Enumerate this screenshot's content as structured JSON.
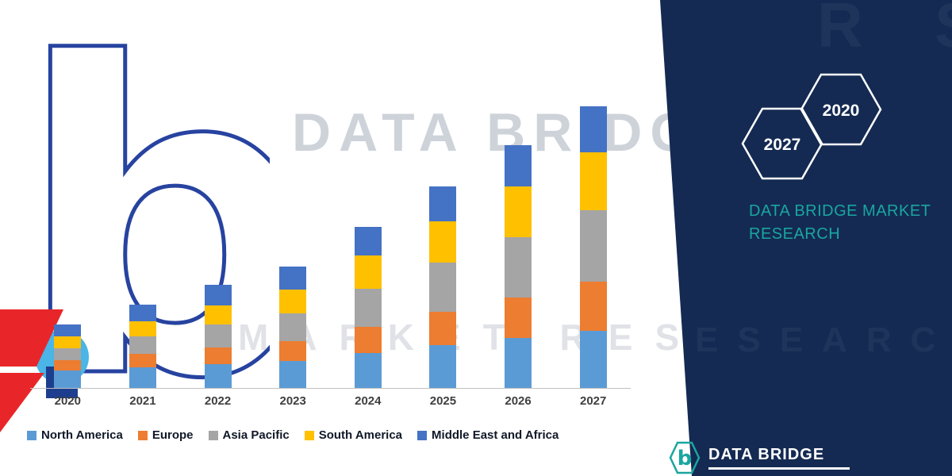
{
  "brand_colors": {
    "panel_navy": "#142a52",
    "teal": "#1AA6A0",
    "logo_blue": "#2743A0",
    "logo_red": "#E8262A",
    "logo_lightblue": "#4AB5E6"
  },
  "watermark": {
    "line1": "DATA BRIDGE",
    "line2": "MARKET RESEARCH"
  },
  "side_panel": {
    "hexagons": [
      {
        "year": "2027"
      },
      {
        "year": "2020"
      }
    ],
    "title_line1": "DATA BRIDGE MARKET",
    "title_line2": "RESEARCH"
  },
  "footer": {
    "logo_text": "DATA BRIDGE"
  },
  "chart_data": {
    "type": "bar",
    "stacked": true,
    "title": "",
    "xlabel": "",
    "ylabel": "",
    "units": "relative (no numeric axis shown in image)",
    "grid": false,
    "legend_position": "bottom",
    "ylim": [
      0,
      36
    ],
    "categories": [
      "2020",
      "2021",
      "2022",
      "2023",
      "2024",
      "2025",
      "2026",
      "2027"
    ],
    "series": [
      {
        "name": "North America",
        "color": "#5B9BD5",
        "values": [
          2.2,
          2.6,
          3.0,
          3.4,
          4.4,
          5.4,
          6.3,
          7.2
        ]
      },
      {
        "name": "Europe",
        "color": "#ED7D31",
        "values": [
          1.3,
          1.7,
          2.1,
          2.5,
          3.3,
          4.2,
          5.1,
          6.2
        ]
      },
      {
        "name": "Asia Pacific",
        "color": "#A5A5A5",
        "values": [
          1.5,
          2.2,
          2.9,
          3.5,
          4.8,
          6.2,
          7.6,
          9.0
        ]
      },
      {
        "name": "South America",
        "color": "#FFC000",
        "values": [
          1.5,
          1.9,
          2.4,
          3.0,
          4.2,
          5.2,
          6.4,
          7.3
        ]
      },
      {
        "name": "Middle East and Africa",
        "color": "#4472C4",
        "values": [
          1.5,
          2.1,
          2.6,
          2.9,
          3.6,
          4.4,
          5.2,
          5.8
        ]
      }
    ]
  }
}
